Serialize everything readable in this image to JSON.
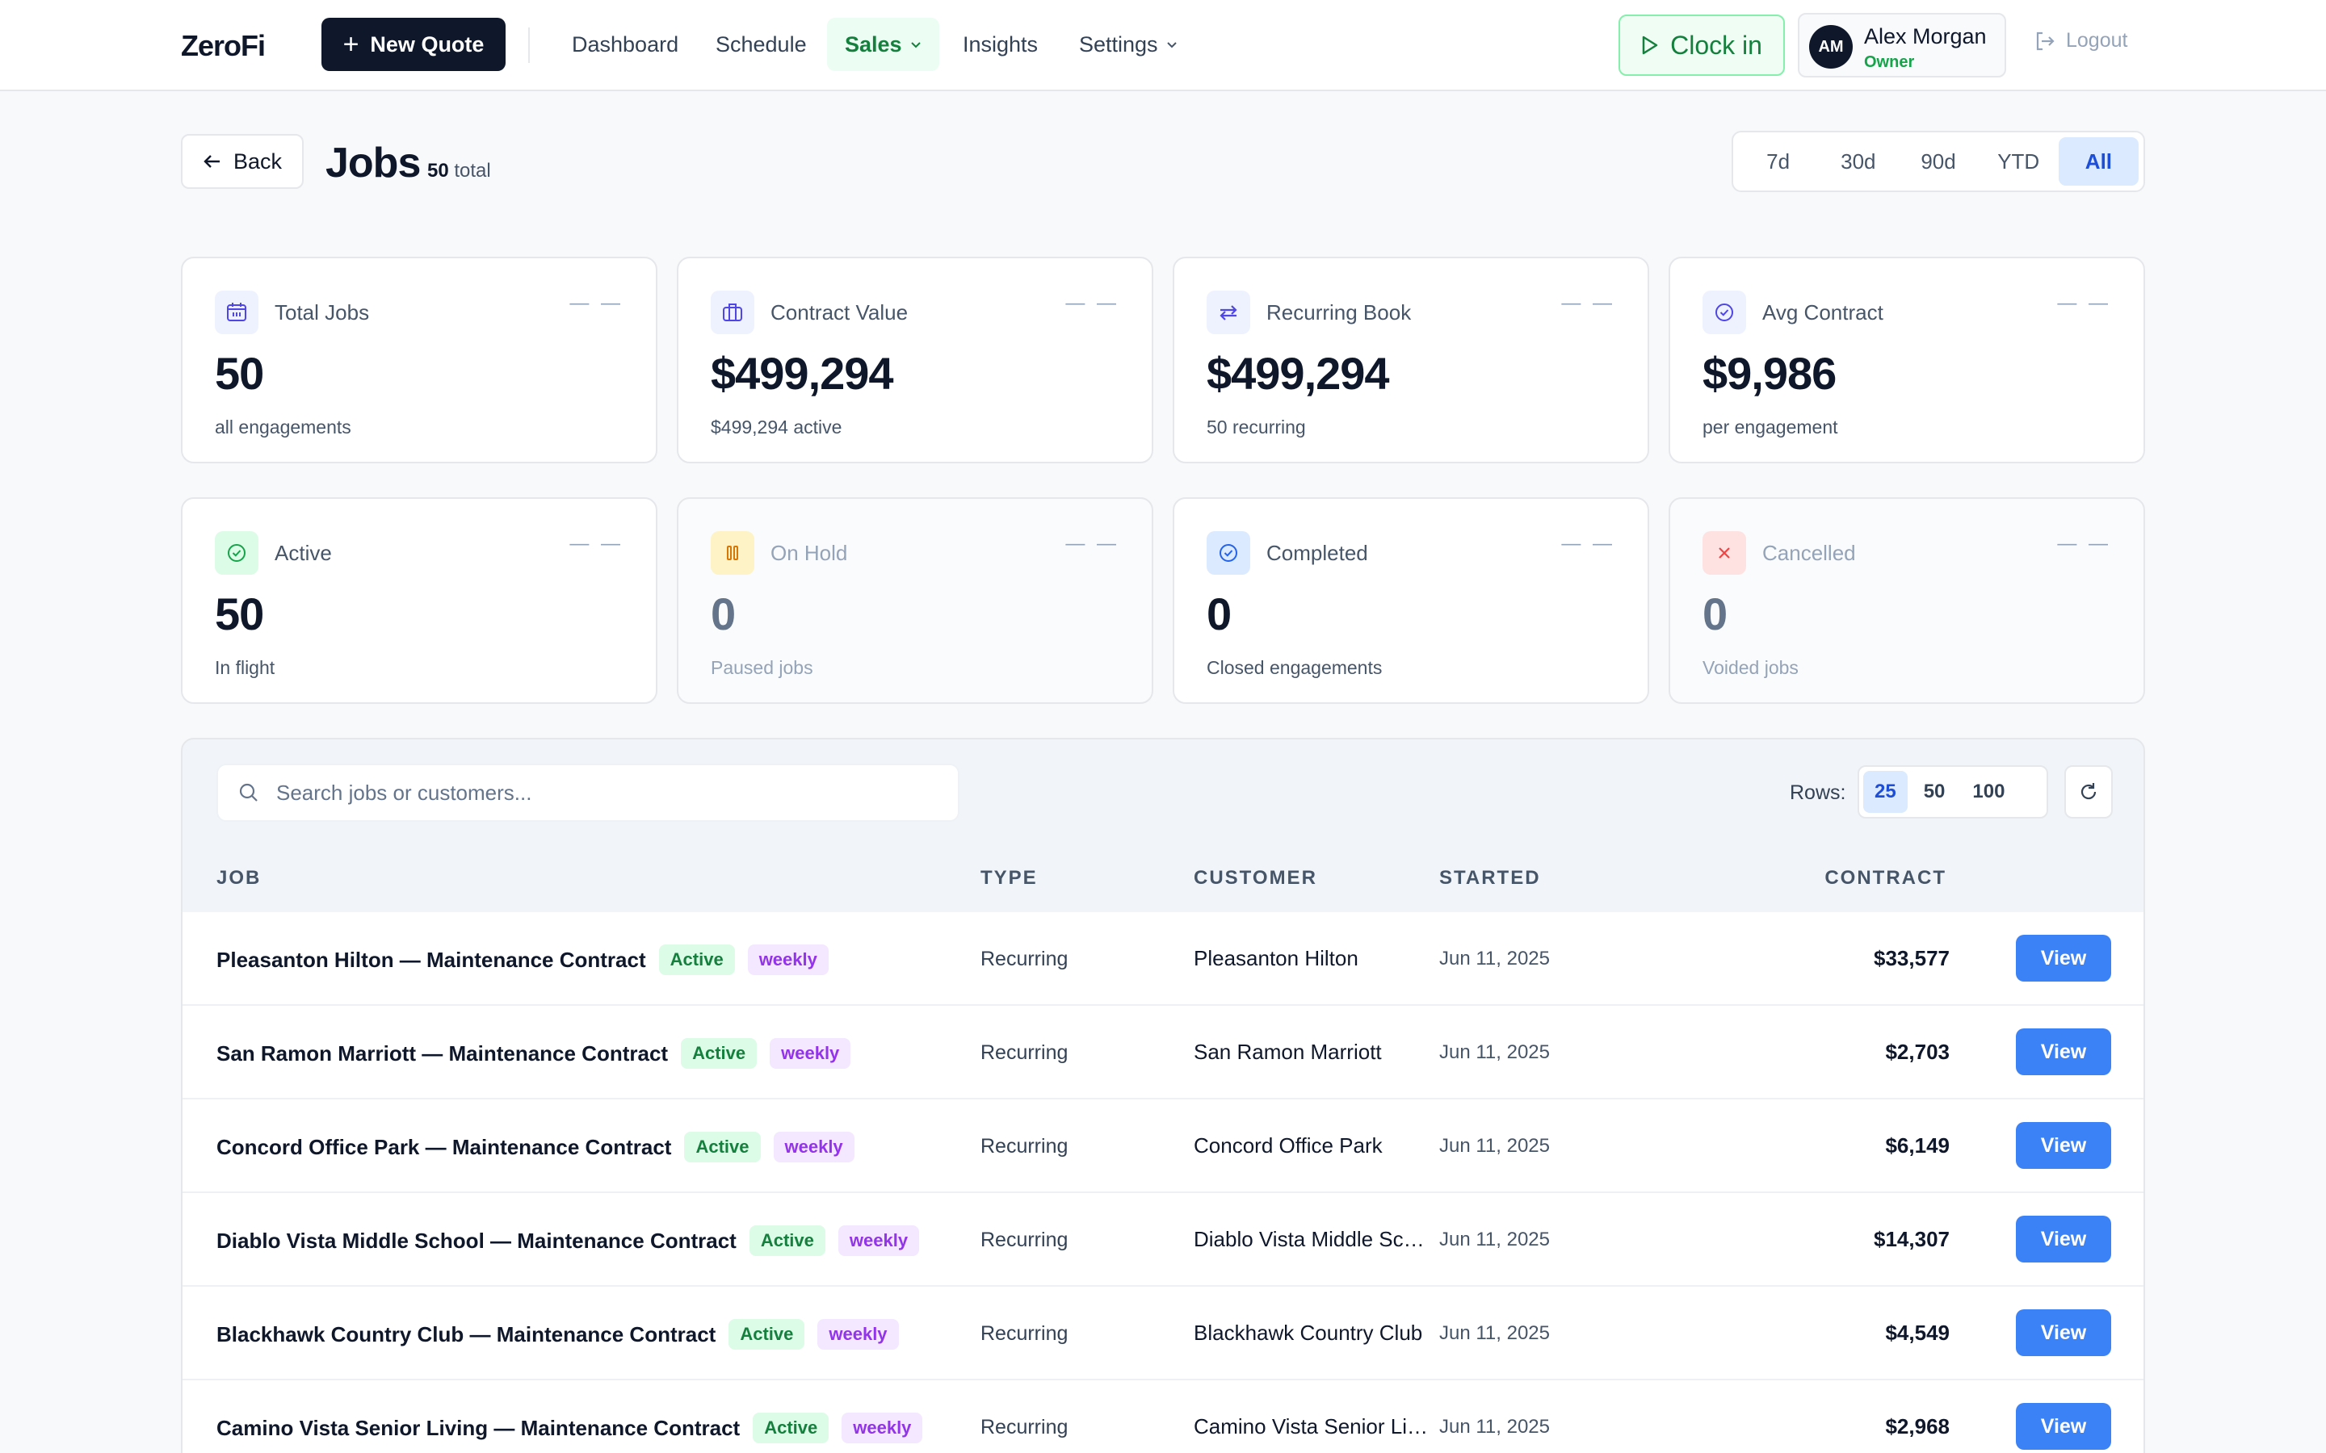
{
  "header": {
    "logo": "ZeroFi",
    "new_quote_label": "New Quote",
    "nav": [
      {
        "label": "Dashboard"
      },
      {
        "label": "Schedule"
      },
      {
        "label": "Sales"
      },
      {
        "label": "Insights"
      },
      {
        "label": "Settings"
      }
    ],
    "clock_in_label": "Clock in",
    "user": {
      "initials": "AM",
      "name": "Alex Morgan",
      "role": "Owner"
    },
    "logout_label": "Logout"
  },
  "page": {
    "back_label": "Back",
    "title": "Jobs",
    "total_count": "50",
    "total_suffix": "total",
    "ranges": [
      "7d",
      "30d",
      "90d",
      "YTD",
      "All"
    ],
    "selected_range": "All"
  },
  "stats": [
    {
      "label": "Total Jobs",
      "value": "50",
      "sub": "all engagements",
      "icon": "calendar-icon",
      "trend": "— —"
    },
    {
      "label": "Contract Value",
      "value": "$499,294",
      "sub": "$499,294 active",
      "icon": "briefcase-icon",
      "trend": "— —"
    },
    {
      "label": "Recurring Book",
      "value": "$499,294",
      "sub": "50 recurring",
      "icon": "repeat-icon",
      "trend": "— —"
    },
    {
      "label": "Avg Contract",
      "value": "$9,986",
      "sub": "per engagement",
      "icon": "check-circle-icon",
      "trend": "— —"
    },
    {
      "label": "Active",
      "value": "50",
      "sub": "In flight",
      "icon": "check-circle-icon",
      "trend": "— —"
    },
    {
      "label": "On Hold",
      "value": "0",
      "sub": "Paused jobs",
      "icon": "pause-icon",
      "trend": "— —"
    },
    {
      "label": "Completed",
      "value": "0",
      "sub": "Closed engagements",
      "icon": "check-circle-icon",
      "trend": "— —"
    },
    {
      "label": "Cancelled",
      "value": "0",
      "sub": "Voided jobs",
      "icon": "x-icon",
      "trend": "— —"
    }
  ],
  "table": {
    "search_placeholder": "Search jobs or customers...",
    "rows_label": "Rows:",
    "rows_options": [
      "25",
      "50",
      "100"
    ],
    "rows_selected": "25",
    "columns": [
      "JOB",
      "TYPE",
      "CUSTOMER",
      "STARTED",
      "CONTRACT"
    ],
    "view_label": "View",
    "rows": [
      {
        "job": "Pleasanton Hilton — Maintenance Contract",
        "status": "Active",
        "freq": "weekly",
        "type": "Recurring",
        "customer": "Pleasanton Hilton",
        "started": "Jun 11, 2025",
        "contract": "$33,577"
      },
      {
        "job": "San Ramon Marriott — Maintenance Contract",
        "status": "Active",
        "freq": "weekly",
        "type": "Recurring",
        "customer": "San Ramon Marriott",
        "started": "Jun 11, 2025",
        "contract": "$2,703"
      },
      {
        "job": "Concord Office Park — Maintenance Contract",
        "status": "Active",
        "freq": "weekly",
        "type": "Recurring",
        "customer": "Concord Office Park",
        "started": "Jun 11, 2025",
        "contract": "$6,149"
      },
      {
        "job": "Diablo Vista Middle School — Maintenance Contract",
        "status": "Active",
        "freq": "weekly",
        "type": "Recurring",
        "customer": "Diablo Vista Middle School",
        "started": "Jun 11, 2025",
        "contract": "$14,307"
      },
      {
        "job": "Blackhawk Country Club — Maintenance Contract",
        "status": "Active",
        "freq": "weekly",
        "type": "Recurring",
        "customer": "Blackhawk Country Club",
        "started": "Jun 11, 2025",
        "contract": "$4,549"
      },
      {
        "job": "Camino Vista Senior Living — Maintenance Contract",
        "status": "Active",
        "freq": "weekly",
        "type": "Recurring",
        "customer": "Camino Vista Senior Living",
        "started": "Jun 11, 2025",
        "contract": "$2,968"
      }
    ]
  },
  "colors": {
    "primary_dark": "#0f172a",
    "accent_green": "#15803d",
    "accent_blue": "#3b82f6",
    "badge_purple": "#9333ea"
  }
}
